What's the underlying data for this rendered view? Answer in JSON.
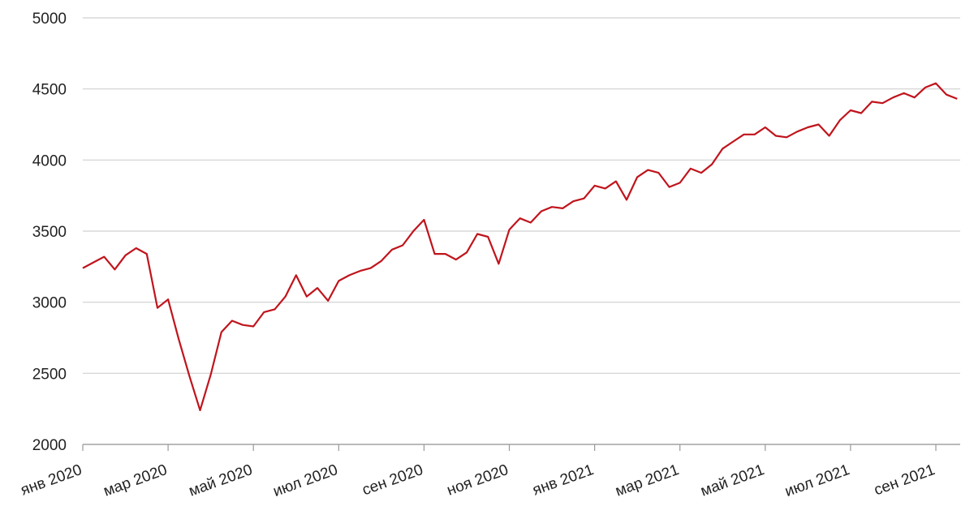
{
  "chart_data": {
    "type": "line",
    "categories": [
      "янв 2020",
      null,
      null,
      null,
      null,
      null,
      null,
      null,
      "мар 2020",
      null,
      null,
      null,
      null,
      null,
      null,
      null,
      "май 2020",
      null,
      null,
      null,
      null,
      null,
      null,
      null,
      "июл 2020",
      null,
      null,
      null,
      null,
      null,
      null,
      null,
      "сен 2020",
      null,
      null,
      null,
      null,
      null,
      null,
      null,
      "ноя 2020",
      null,
      null,
      null,
      null,
      null,
      null,
      null,
      "янв 2021",
      null,
      null,
      null,
      null,
      null,
      null,
      null,
      "мар 2021",
      null,
      null,
      null,
      null,
      null,
      null,
      null,
      "май 2021",
      null,
      null,
      null,
      null,
      null,
      null,
      null,
      "июл 2021",
      null,
      null,
      null,
      null,
      null,
      null,
      null,
      "сен 2021",
      null,
      null
    ],
    "series": [
      {
        "color": "#c0141c",
        "values": [
          3240,
          3280,
          3320,
          3230,
          3330,
          3380,
          3340,
          2960,
          3020,
          2740,
          2480,
          2240,
          2490,
          2790,
          2870,
          2840,
          2830,
          2930,
          2950,
          3040,
          3190,
          3040,
          3100,
          3010,
          3150,
          3190,
          3220,
          3240,
          3290,
          3370,
          3400,
          3500,
          3580,
          3340,
          3340,
          3300,
          3350,
          3480,
          3460,
          3270,
          3510,
          3590,
          3560,
          3640,
          3670,
          3660,
          3710,
          3730,
          3820,
          3800,
          3850,
          3720,
          3880,
          3930,
          3910,
          3810,
          3840,
          3940,
          3910,
          3970,
          4080,
          4130,
          4180,
          4180,
          4230,
          4170,
          4160,
          4200,
          4230,
          4250,
          4170,
          4280,
          4350,
          4330,
          4410,
          4400,
          4440,
          4470,
          4440,
          4510,
          4540,
          4460,
          4430
        ]
      }
    ],
    "ylim": [
      2000,
      5000
    ],
    "yticks": [
      2000,
      2500,
      3000,
      3500,
      4000,
      4500,
      5000
    ],
    "grid": true
  }
}
